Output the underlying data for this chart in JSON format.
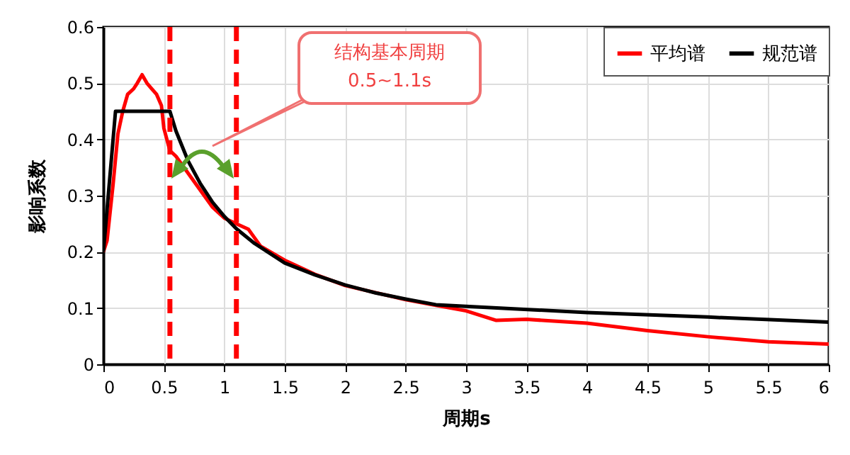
{
  "chart_data": {
    "type": "line",
    "xlabel": "周期s",
    "ylabel": "影响系数",
    "xlim": [
      0,
      6
    ],
    "xticks": [
      0,
      0.5,
      1,
      1.5,
      2,
      2.5,
      3,
      3.5,
      4,
      4.5,
      5,
      5.5,
      6
    ],
    "ylim": [
      0,
      0.6
    ],
    "yticks": [
      0,
      0.1,
      0.2,
      0.3,
      0.4,
      0.5,
      0.6
    ],
    "grid": true,
    "legend": "top right",
    "series": [
      {
        "name": "平均谱",
        "color": "#ff0000",
        "x": [
          0,
          0.03,
          0.08,
          0.12,
          0.16,
          0.2,
          0.25,
          0.28,
          0.32,
          0.36,
          0.4,
          0.44,
          0.48,
          0.5,
          0.55,
          0.6,
          0.7,
          0.8,
          0.9,
          1.0,
          1.1,
          1.2,
          1.3,
          1.5,
          1.75,
          2,
          2.3,
          2.5,
          2.75,
          3,
          3.25,
          3.5,
          4,
          4.5,
          5,
          5.5,
          6
        ],
        "values": [
          0.2,
          0.22,
          0.32,
          0.41,
          0.45,
          0.48,
          0.49,
          0.5,
          0.515,
          0.5,
          0.49,
          0.48,
          0.46,
          0.42,
          0.38,
          0.37,
          0.34,
          0.31,
          0.28,
          0.26,
          0.25,
          0.24,
          0.21,
          0.185,
          0.16,
          0.14,
          0.125,
          0.115,
          0.105,
          0.095,
          0.078,
          0.08,
          0.073,
          0.06,
          0.049,
          0.04,
          0.036
        ]
      },
      {
        "name": "规范谱",
        "color": "#000000",
        "x": [
          0,
          0.1,
          0.55,
          0.6,
          0.7,
          0.8,
          0.9,
          1.0,
          1.1,
          1.25,
          1.5,
          1.75,
          2,
          2.25,
          2.5,
          2.75,
          3,
          4,
          5,
          6
        ],
        "values": [
          0.2,
          0.45,
          0.45,
          0.415,
          0.362,
          0.322,
          0.289,
          0.263,
          0.241,
          0.215,
          0.18,
          0.159,
          0.141,
          0.127,
          0.116,
          0.106,
          0.103,
          0.092,
          0.084,
          0.075
        ]
      }
    ],
    "ref_lines": [
      {
        "axis": "x",
        "value": 0.55,
        "color": "#ff0000",
        "line_style": "dashed"
      },
      {
        "axis": "x",
        "value": 1.1,
        "color": "#ff0000",
        "line_style": "dashed"
      }
    ],
    "annotations": [
      "结构基本周期\n0.5~1.1s"
    ]
  }
}
